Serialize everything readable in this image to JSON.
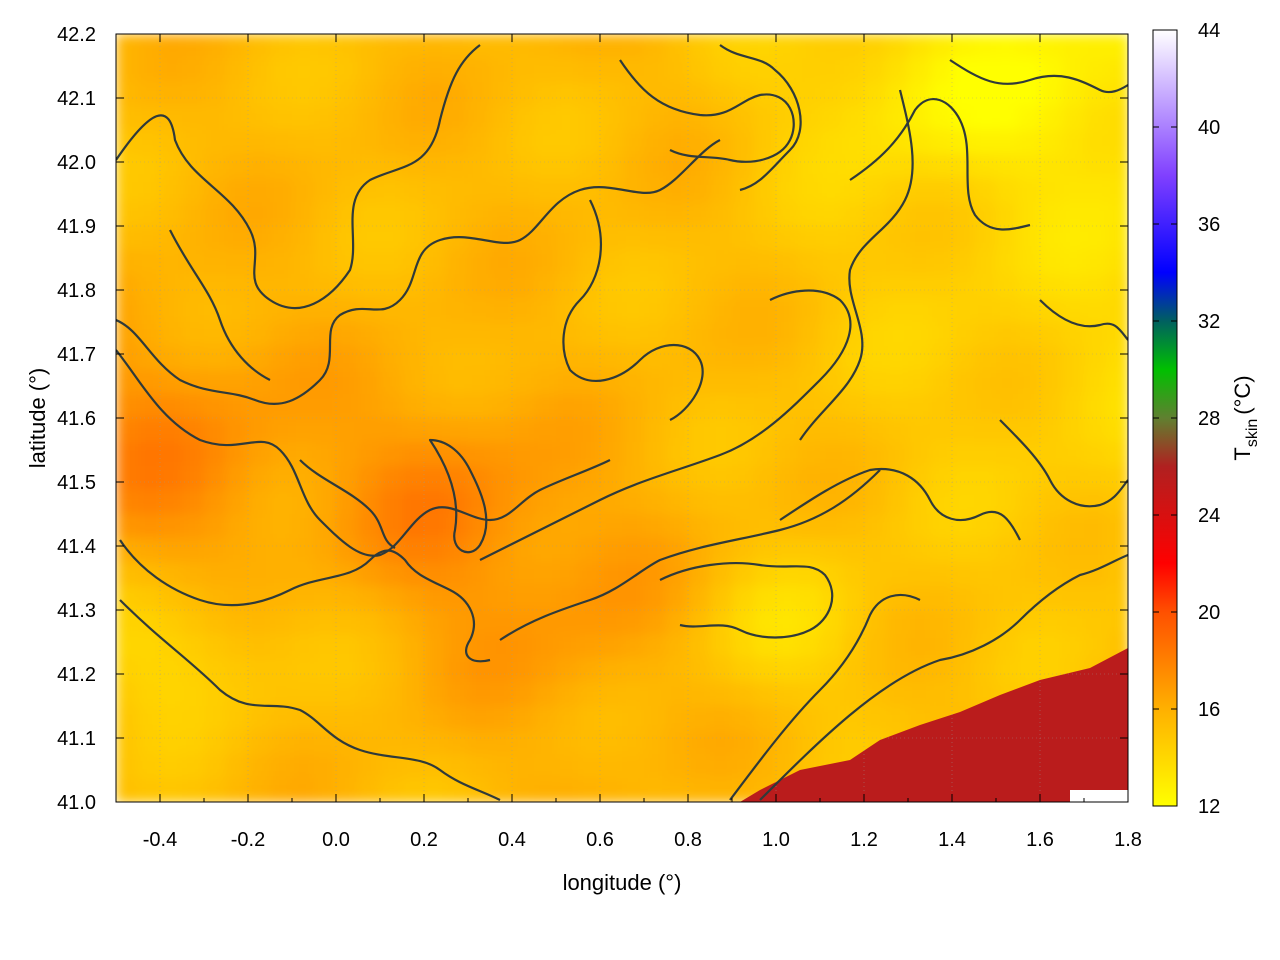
{
  "chart_data": {
    "type": "heatmap",
    "title": "",
    "xlabel": "longitude (°)",
    "ylabel": "latitude (°)",
    "colorbar_label": "T",
    "colorbar_label_sub": "skin",
    "colorbar_label_unit": "(°C)",
    "xlim": [
      -0.5,
      1.8
    ],
    "ylim": [
      41.0,
      42.2
    ],
    "xticks": [
      -0.4,
      -0.2,
      0.0,
      0.2,
      0.4,
      0.6,
      0.8,
      1.0,
      1.2,
      1.4,
      1.6,
      1.8
    ],
    "xtick_labels": [
      "-0.4",
      "-0.2",
      "0.0",
      "0.2",
      "0.4",
      "0.6",
      "0.8",
      "1.0",
      "1.2",
      "1.4",
      "1.6",
      "1.8"
    ],
    "yticks": [
      41.0,
      41.1,
      41.2,
      41.3,
      41.4,
      41.5,
      41.6,
      41.7,
      41.8,
      41.9,
      42.0,
      42.1,
      42.2
    ],
    "ytick_labels": [
      "41.0",
      "41.1",
      "41.2",
      "41.3",
      "41.4",
      "41.5",
      "41.6",
      "41.7",
      "41.8",
      "41.9",
      "42.0",
      "42.1",
      "42.2"
    ],
    "color_range": [
      12,
      44
    ],
    "colorbar_ticks": [
      12,
      16,
      20,
      24,
      28,
      32,
      36,
      40,
      44
    ],
    "colorbar_tick_labels": [
      "12",
      "16",
      "20",
      "24",
      "28",
      "32",
      "36",
      "40",
      "44"
    ],
    "colormap": [
      {
        "value": 12,
        "color": "#ffff00"
      },
      {
        "value": 16,
        "color": "#ffb000"
      },
      {
        "value": 20,
        "color": "#ff5000"
      },
      {
        "value": 22,
        "color": "#ff0000"
      },
      {
        "value": 26,
        "color": "#b02020"
      },
      {
        "value": 28,
        "color": "#608030"
      },
      {
        "value": 30,
        "color": "#00c000"
      },
      {
        "value": 32,
        "color": "#006060"
      },
      {
        "value": 34,
        "color": "#0000ff"
      },
      {
        "value": 38,
        "color": "#8040ff"
      },
      {
        "value": 44,
        "color": "#ffffff"
      }
    ],
    "grid": true,
    "contours": true,
    "sea_region": {
      "location": "bottom-right",
      "approx_value": 25.5
    },
    "field_approx_range": [
      12,
      26
    ]
  }
}
